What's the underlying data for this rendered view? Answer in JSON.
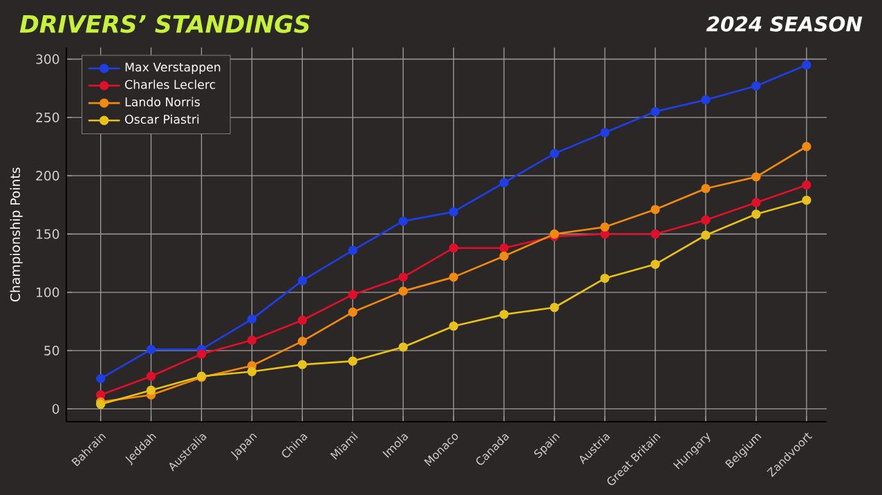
{
  "chart_data": {
    "type": "line",
    "title": "DRIVERS’ STANDINGS",
    "subtitle": "2024 SEASON",
    "ylabel": "Championship Points",
    "categories": [
      "Bahrain",
      "Jeddah",
      "Australia",
      "Japan",
      "China",
      "Miami",
      "Imola",
      "Monaco",
      "Canada",
      "Spain",
      "Austria",
      "Great Britain",
      "Hungary",
      "Belgium",
      "Zandvoort"
    ],
    "series": [
      {
        "name": "Max Verstappen",
        "color": "#1f3fe6",
        "values": [
          26,
          51,
          51,
          77,
          110,
          136,
          161,
          169,
          194,
          219,
          237,
          255,
          265,
          277,
          295
        ]
      },
      {
        "name": "Charles Leclerc",
        "color": "#e0102a",
        "values": [
          12,
          28,
          47,
          59,
          76,
          98,
          113,
          138,
          138,
          148,
          150,
          150,
          162,
          177,
          192
        ]
      },
      {
        "name": "Lando Norris",
        "color": "#f08a10",
        "values": [
          6,
          12,
          27,
          37,
          58,
          83,
          101,
          113,
          131,
          150,
          156,
          171,
          189,
          199,
          225
        ]
      },
      {
        "name": "Oscar Piastri",
        "color": "#e8c21a",
        "values": [
          4,
          16,
          28,
          32,
          38,
          41,
          53,
          71,
          81,
          87,
          112,
          124,
          149,
          167,
          179
        ]
      }
    ],
    "ylim": [
      -11,
      310
    ],
    "yticks": [
      0,
      50,
      100,
      150,
      200,
      250,
      300
    ],
    "grid": true,
    "legend": "top left",
    "marker": "circle",
    "line_style": "solid"
  }
}
